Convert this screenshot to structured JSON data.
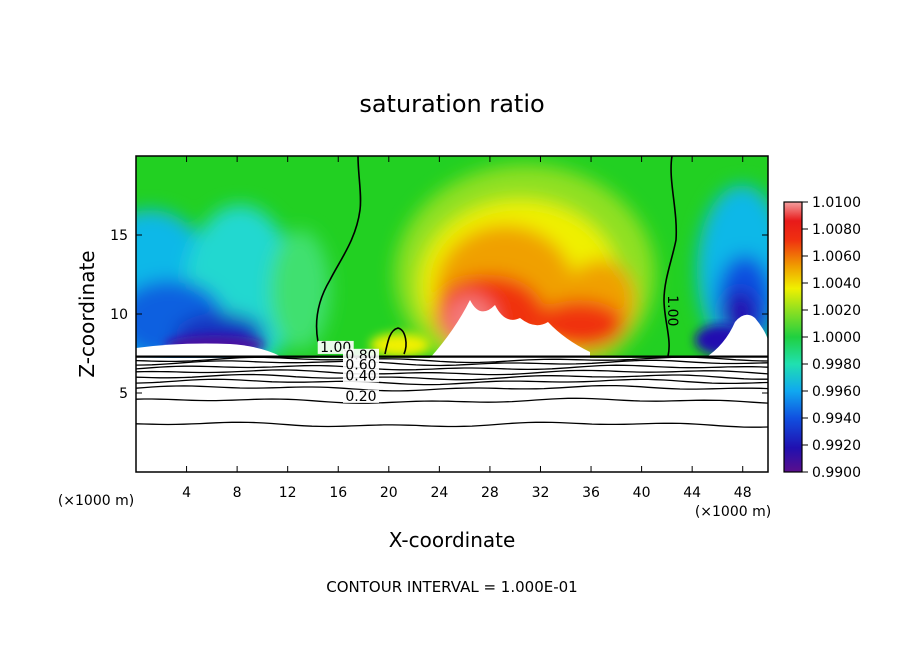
{
  "chart_data": {
    "type": "heatmap",
    "title": "saturation ratio",
    "xlabel": "X-coordinate",
    "ylabel": "Z-coordinate",
    "x_unit": "(×1000 m)",
    "footer": "CONTOUR INTERVAL = 1.000E-01",
    "xlim": [
      0,
      50
    ],
    "ylim": [
      0,
      20
    ],
    "x_ticks": [
      4,
      8,
      12,
      16,
      20,
      24,
      28,
      32,
      36,
      40,
      44,
      48
    ],
    "y_ticks": [
      5,
      10,
      15
    ],
    "colorbar": {
      "min": 0.99,
      "max": 1.01,
      "tick_labels": [
        "1.0100",
        "1.0080",
        "1.0060",
        "1.0040",
        "1.0020",
        "1.0000",
        "0.9980",
        "0.9960",
        "0.9940",
        "0.9920",
        "0.9900"
      ]
    },
    "contour_labels": [
      {
        "text": "1.00",
        "x": 15.8,
        "z": 7.6
      },
      {
        "text": "1.00",
        "x": 42.1,
        "z": 10.2
      },
      {
        "text": "0.80",
        "x": 17.8,
        "z": 7.1
      },
      {
        "text": "0.60",
        "x": 17.8,
        "z": 6.5
      },
      {
        "text": "0.40",
        "x": 17.8,
        "z": 5.8
      },
      {
        "text": "0.20",
        "x": 17.8,
        "z": 4.5
      }
    ],
    "surface_z": 7.3,
    "lower_contours_z": [
      7.1,
      6.9,
      6.6,
      6.3,
      6.0,
      5.7,
      5.3,
      4.5,
      3.0
    ]
  }
}
